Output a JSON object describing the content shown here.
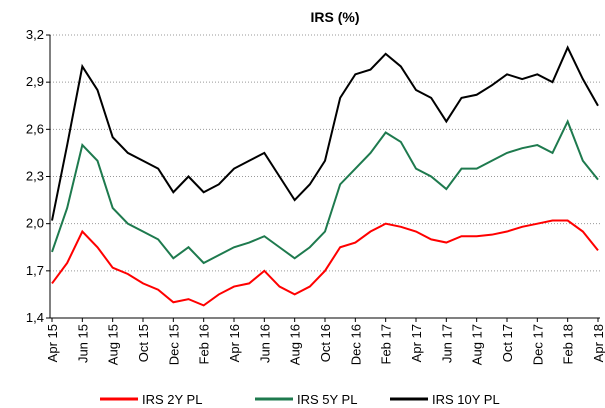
{
  "chart_data": {
    "type": "line",
    "title": "IRS (%)",
    "categories": [
      "Apr 15",
      null,
      "Jun 15",
      null,
      "Aug 15",
      null,
      "Oct 15",
      null,
      "Dec 15",
      null,
      "Feb 16",
      null,
      "Apr 16",
      null,
      "Jun 16",
      null,
      "Aug 16",
      null,
      "Oct 16",
      null,
      "Dec 16",
      null,
      "Feb 17",
      null,
      "Apr 17",
      null,
      "Jun 17",
      null,
      "Aug 17",
      null,
      "Oct 17",
      null,
      "Dec 17",
      null,
      "Feb 18",
      null,
      "Apr 18"
    ],
    "series": [
      {
        "name": "IRS 2Y PL",
        "color": "#ff0000",
        "values": [
          1.62,
          1.75,
          1.95,
          1.85,
          1.72,
          1.68,
          1.62,
          1.58,
          1.5,
          1.52,
          1.48,
          1.55,
          1.6,
          1.62,
          1.7,
          1.6,
          1.55,
          1.6,
          1.7,
          1.85,
          1.88,
          1.95,
          2.0,
          1.98,
          1.95,
          1.9,
          1.88,
          1.92,
          1.92,
          1.93,
          1.95,
          1.98,
          2.0,
          2.02,
          2.02,
          1.95,
          1.83
        ]
      },
      {
        "name": "IRS 5Y PL",
        "color": "#1e7a4e",
        "values": [
          1.82,
          2.1,
          2.5,
          2.4,
          2.1,
          2.0,
          1.95,
          1.9,
          1.78,
          1.85,
          1.75,
          1.8,
          1.85,
          1.88,
          1.92,
          1.85,
          1.78,
          1.85,
          1.95,
          2.25,
          2.35,
          2.45,
          2.58,
          2.52,
          2.35,
          2.3,
          2.22,
          2.35,
          2.35,
          2.4,
          2.45,
          2.48,
          2.5,
          2.45,
          2.65,
          2.4,
          2.28
        ]
      },
      {
        "name": "IRS 10Y PL",
        "color": "#000000",
        "values": [
          2.02,
          2.5,
          3.0,
          2.85,
          2.55,
          2.45,
          2.4,
          2.35,
          2.2,
          2.3,
          2.2,
          2.25,
          2.35,
          2.4,
          2.45,
          2.3,
          2.15,
          2.25,
          2.4,
          2.8,
          2.95,
          2.98,
          3.08,
          3.0,
          2.85,
          2.8,
          2.65,
          2.8,
          2.82,
          2.88,
          2.95,
          2.92,
          2.95,
          2.9,
          3.12,
          2.92,
          2.75
        ]
      }
    ],
    "ylim": [
      1.4,
      3.2
    ],
    "yticks": [
      {
        "value": 1.4,
        "label": "1,4"
      },
      {
        "value": 1.7,
        "label": "1,7"
      },
      {
        "value": 2.0,
        "label": "2,0"
      },
      {
        "value": 2.3,
        "label": "2,3"
      },
      {
        "value": 2.6,
        "label": "2,6"
      },
      {
        "value": 2.9,
        "label": "2,9"
      },
      {
        "value": 3.2,
        "label": "3,2"
      }
    ],
    "grid": true
  }
}
